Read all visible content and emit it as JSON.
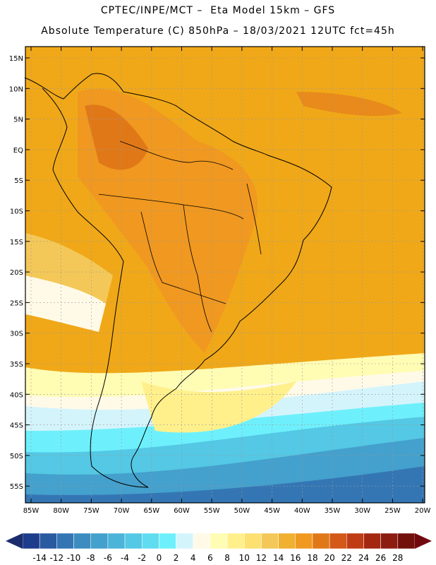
{
  "titles": {
    "line1": "CPTEC/INPE/MCT –  Eta Model 15km – GFS",
    "line2": "Absolute Temperature (C) 850hPa – 18/03/2021 12UTC fct=45h"
  },
  "map": {
    "lat_labels": [
      "15N",
      "10N",
      "5N",
      "EQ",
      "5S",
      "10S",
      "15S",
      "20S",
      "25S",
      "30S",
      "35S",
      "40S",
      "45S",
      "50S",
      "55S"
    ],
    "lon_labels": [
      "85W",
      "80W",
      "75W",
      "70W",
      "65W",
      "60W",
      "55W",
      "50W",
      "45W",
      "40W",
      "35W",
      "30W",
      "25W",
      "20W"
    ],
    "background_color": "#f0a818"
  },
  "colorbar": {
    "labels": [
      "-14",
      "-12",
      "-10",
      "-8",
      "-6",
      "-4",
      "-2",
      "0",
      "2",
      "4",
      "6",
      "8",
      "10",
      "12",
      "14",
      "16",
      "18",
      "20",
      "22",
      "24",
      "26",
      "28"
    ],
    "colors": [
      "#1e3c8c",
      "#2a5aa0",
      "#3476b4",
      "#3c8cc0",
      "#44a0cc",
      "#4cb4d8",
      "#54c8e4",
      "#60dcf0",
      "#6ef0fc",
      "#d4f4fc",
      "#fffae8",
      "#fffcb4",
      "#fff08c",
      "#fce070",
      "#f4c858",
      "#f0b030",
      "#f09820",
      "#e07818",
      "#d45818",
      "#c03c14",
      "#a42810",
      "#8c1c10",
      "#74100c"
    ],
    "left_color": "#1a2c6c",
    "right_color": "#700810"
  }
}
